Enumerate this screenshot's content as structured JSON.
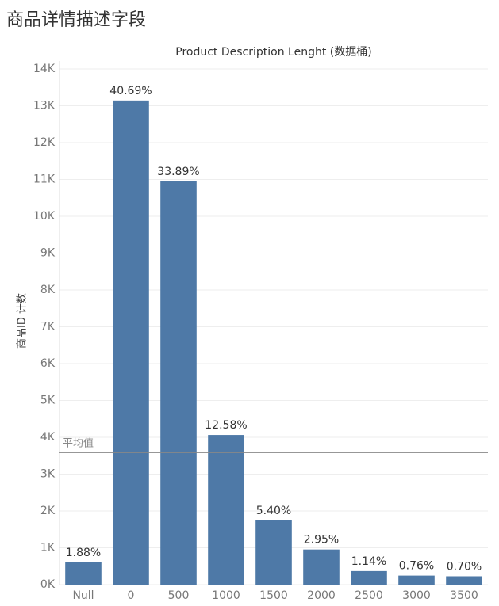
{
  "page_title": "商品详情描述字段",
  "chart_data": {
    "type": "bar",
    "title": "Product Description Lenght (数据桶)",
    "y_label": "商品ID 计数",
    "categories": [
      "Null",
      "0",
      "500",
      "1000",
      "1500",
      "2000",
      "2500",
      "3000",
      "3500"
    ],
    "values": [
      607,
      13143,
      10947,
      4063,
      1744,
      953,
      368,
      245,
      226
    ],
    "data_labels": [
      "1.88%",
      "40.69%",
      "33.89%",
      "12.58%",
      "5.40%",
      "2.95%",
      "1.14%",
      "0.76%",
      "0.70%"
    ],
    "color": "#4e79a7",
    "ylim": [
      0,
      14000
    ],
    "yticks": [
      {
        "value": 0,
        "label": "0K"
      },
      {
        "value": 1000,
        "label": "1K"
      },
      {
        "value": 2000,
        "label": "2K"
      },
      {
        "value": 3000,
        "label": "3K"
      },
      {
        "value": 4000,
        "label": "4K"
      },
      {
        "value": 5000,
        "label": "5K"
      },
      {
        "value": 6000,
        "label": "6K"
      },
      {
        "value": 7000,
        "label": "7K"
      },
      {
        "value": 8000,
        "label": "8K"
      },
      {
        "value": 9000,
        "label": "9K"
      },
      {
        "value": 10000,
        "label": "10K"
      },
      {
        "value": 11000,
        "label": "11K"
      },
      {
        "value": 12000,
        "label": "12K"
      },
      {
        "value": 13000,
        "label": "13K"
      },
      {
        "value": 14000,
        "label": "14K"
      }
    ],
    "grid": true,
    "reference_line": {
      "label": "平均值",
      "value": 3589,
      "color": "#888888"
    }
  }
}
